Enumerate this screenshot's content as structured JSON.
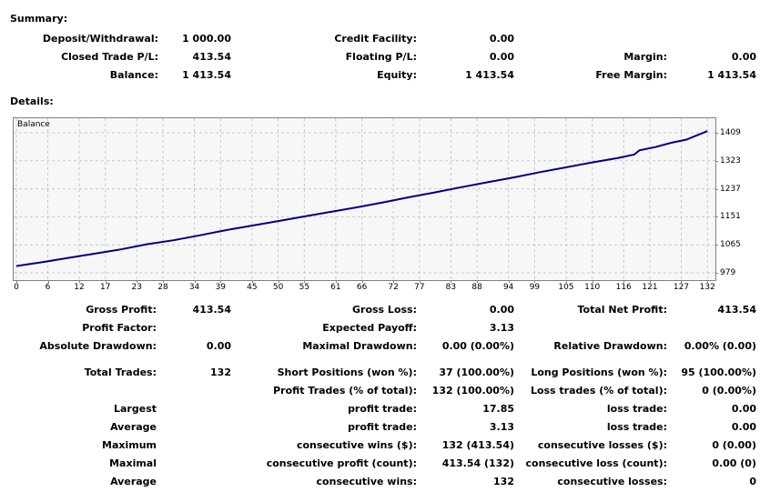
{
  "summary": {
    "heading": "Summary:",
    "deposit_label": "Deposit/Withdrawal:",
    "deposit_value": "1 000.00",
    "credit_label": "Credit Facility:",
    "credit_value": "0.00",
    "closed_label": "Closed Trade P/L:",
    "closed_value": "413.54",
    "floating_label": "Floating P/L:",
    "floating_value": "0.00",
    "margin_label": "Margin:",
    "margin_value": "0.00",
    "balance_label": "Balance:",
    "balance_value": "1 413.54",
    "equity_label": "Equity:",
    "equity_value": "1 413.54",
    "free_margin_label": "Free Margin:",
    "free_margin_value": "1 413.54"
  },
  "details": {
    "heading": "Details:",
    "rows": [
      [
        {
          "label": "Gross Profit:",
          "value": "413.54"
        },
        {
          "label": "Gross Loss:",
          "value": "0.00"
        },
        {
          "label": "Total Net Profit:",
          "value": "413.54"
        }
      ],
      [
        {
          "label": "Profit Factor:",
          "value": ""
        },
        {
          "label": "Expected Payoff:",
          "value": "3.13"
        },
        {
          "label": "",
          "value": ""
        }
      ],
      [
        {
          "label": "Absolute Drawdown:",
          "value": "0.00"
        },
        {
          "label": "Maximal Drawdown:",
          "value": "0.00 (0.00%)"
        },
        {
          "label": "Relative Drawdown:",
          "value": "0.00% (0.00)"
        }
      ],
      [
        {
          "label": "Total Trades:",
          "value": "132"
        },
        {
          "label": "Short Positions (won %):",
          "value": "37 (100.00%)"
        },
        {
          "label": "Long Positions (won %):",
          "value": "95 (100.00%)"
        }
      ],
      [
        {
          "label": "",
          "value": ""
        },
        {
          "label": "Profit Trades (% of total):",
          "value": "132 (100.00%)"
        },
        {
          "label": "Loss trades (% of total):",
          "value": "0 (0.00%)"
        }
      ],
      [
        {
          "label": "Largest",
          "value": ""
        },
        {
          "label": "profit trade:",
          "value": "17.85"
        },
        {
          "label": "loss trade:",
          "value": "0.00"
        }
      ],
      [
        {
          "label": "Average",
          "value": ""
        },
        {
          "label": "profit trade:",
          "value": "3.13"
        },
        {
          "label": "loss trade:",
          "value": "0.00"
        }
      ],
      [
        {
          "label": "Maximum",
          "value": ""
        },
        {
          "label": "consecutive wins ($):",
          "value": "132 (413.54)"
        },
        {
          "label": "consecutive losses ($):",
          "value": "0 (0.00)"
        }
      ],
      [
        {
          "label": "Maximal",
          "value": ""
        },
        {
          "label": "consecutive profit (count):",
          "value": "413.54 (132)"
        },
        {
          "label": "consecutive loss (count):",
          "value": "0.00 (0)"
        }
      ],
      [
        {
          "label": "Average",
          "value": ""
        },
        {
          "label": "consecutive wins:",
          "value": "132"
        },
        {
          "label": "consecutive losses:",
          "value": "0"
        }
      ]
    ]
  },
  "chart_data": {
    "type": "line",
    "title": "Balance",
    "xlabel": "",
    "ylabel": "",
    "x_ticks": [
      "0",
      "6",
      "12",
      "17",
      "23",
      "28",
      "34",
      "39",
      "45",
      "50",
      "55",
      "61",
      "66",
      "72",
      "77",
      "83",
      "88",
      "94",
      "99",
      "105",
      "110",
      "116",
      "121",
      "127",
      "132"
    ],
    "y_ticks": [
      "1409",
      "1323",
      "1237",
      "1151",
      "1065",
      "979"
    ],
    "xlim": [
      0,
      133
    ],
    "ylim": [
      979,
      1409
    ],
    "grid": true,
    "line_color": "#000080",
    "series": [
      {
        "x": [
          0,
          5,
          10,
          15,
          20,
          25,
          30,
          35,
          40,
          45,
          50,
          55,
          60,
          65,
          70,
          75,
          80,
          85,
          90,
          95,
          100,
          105,
          110,
          115,
          118,
          119,
          122,
          125,
          128,
          132
        ],
        "values": [
          1000,
          1012,
          1025,
          1038,
          1051,
          1067,
          1079,
          1094,
          1110,
          1124,
          1138,
          1152,
          1166,
          1180,
          1195,
          1211,
          1226,
          1242,
          1257,
          1272,
          1288,
          1303,
          1318,
          1332,
          1342,
          1355,
          1365,
          1378,
          1388,
          1414
        ]
      }
    ]
  }
}
